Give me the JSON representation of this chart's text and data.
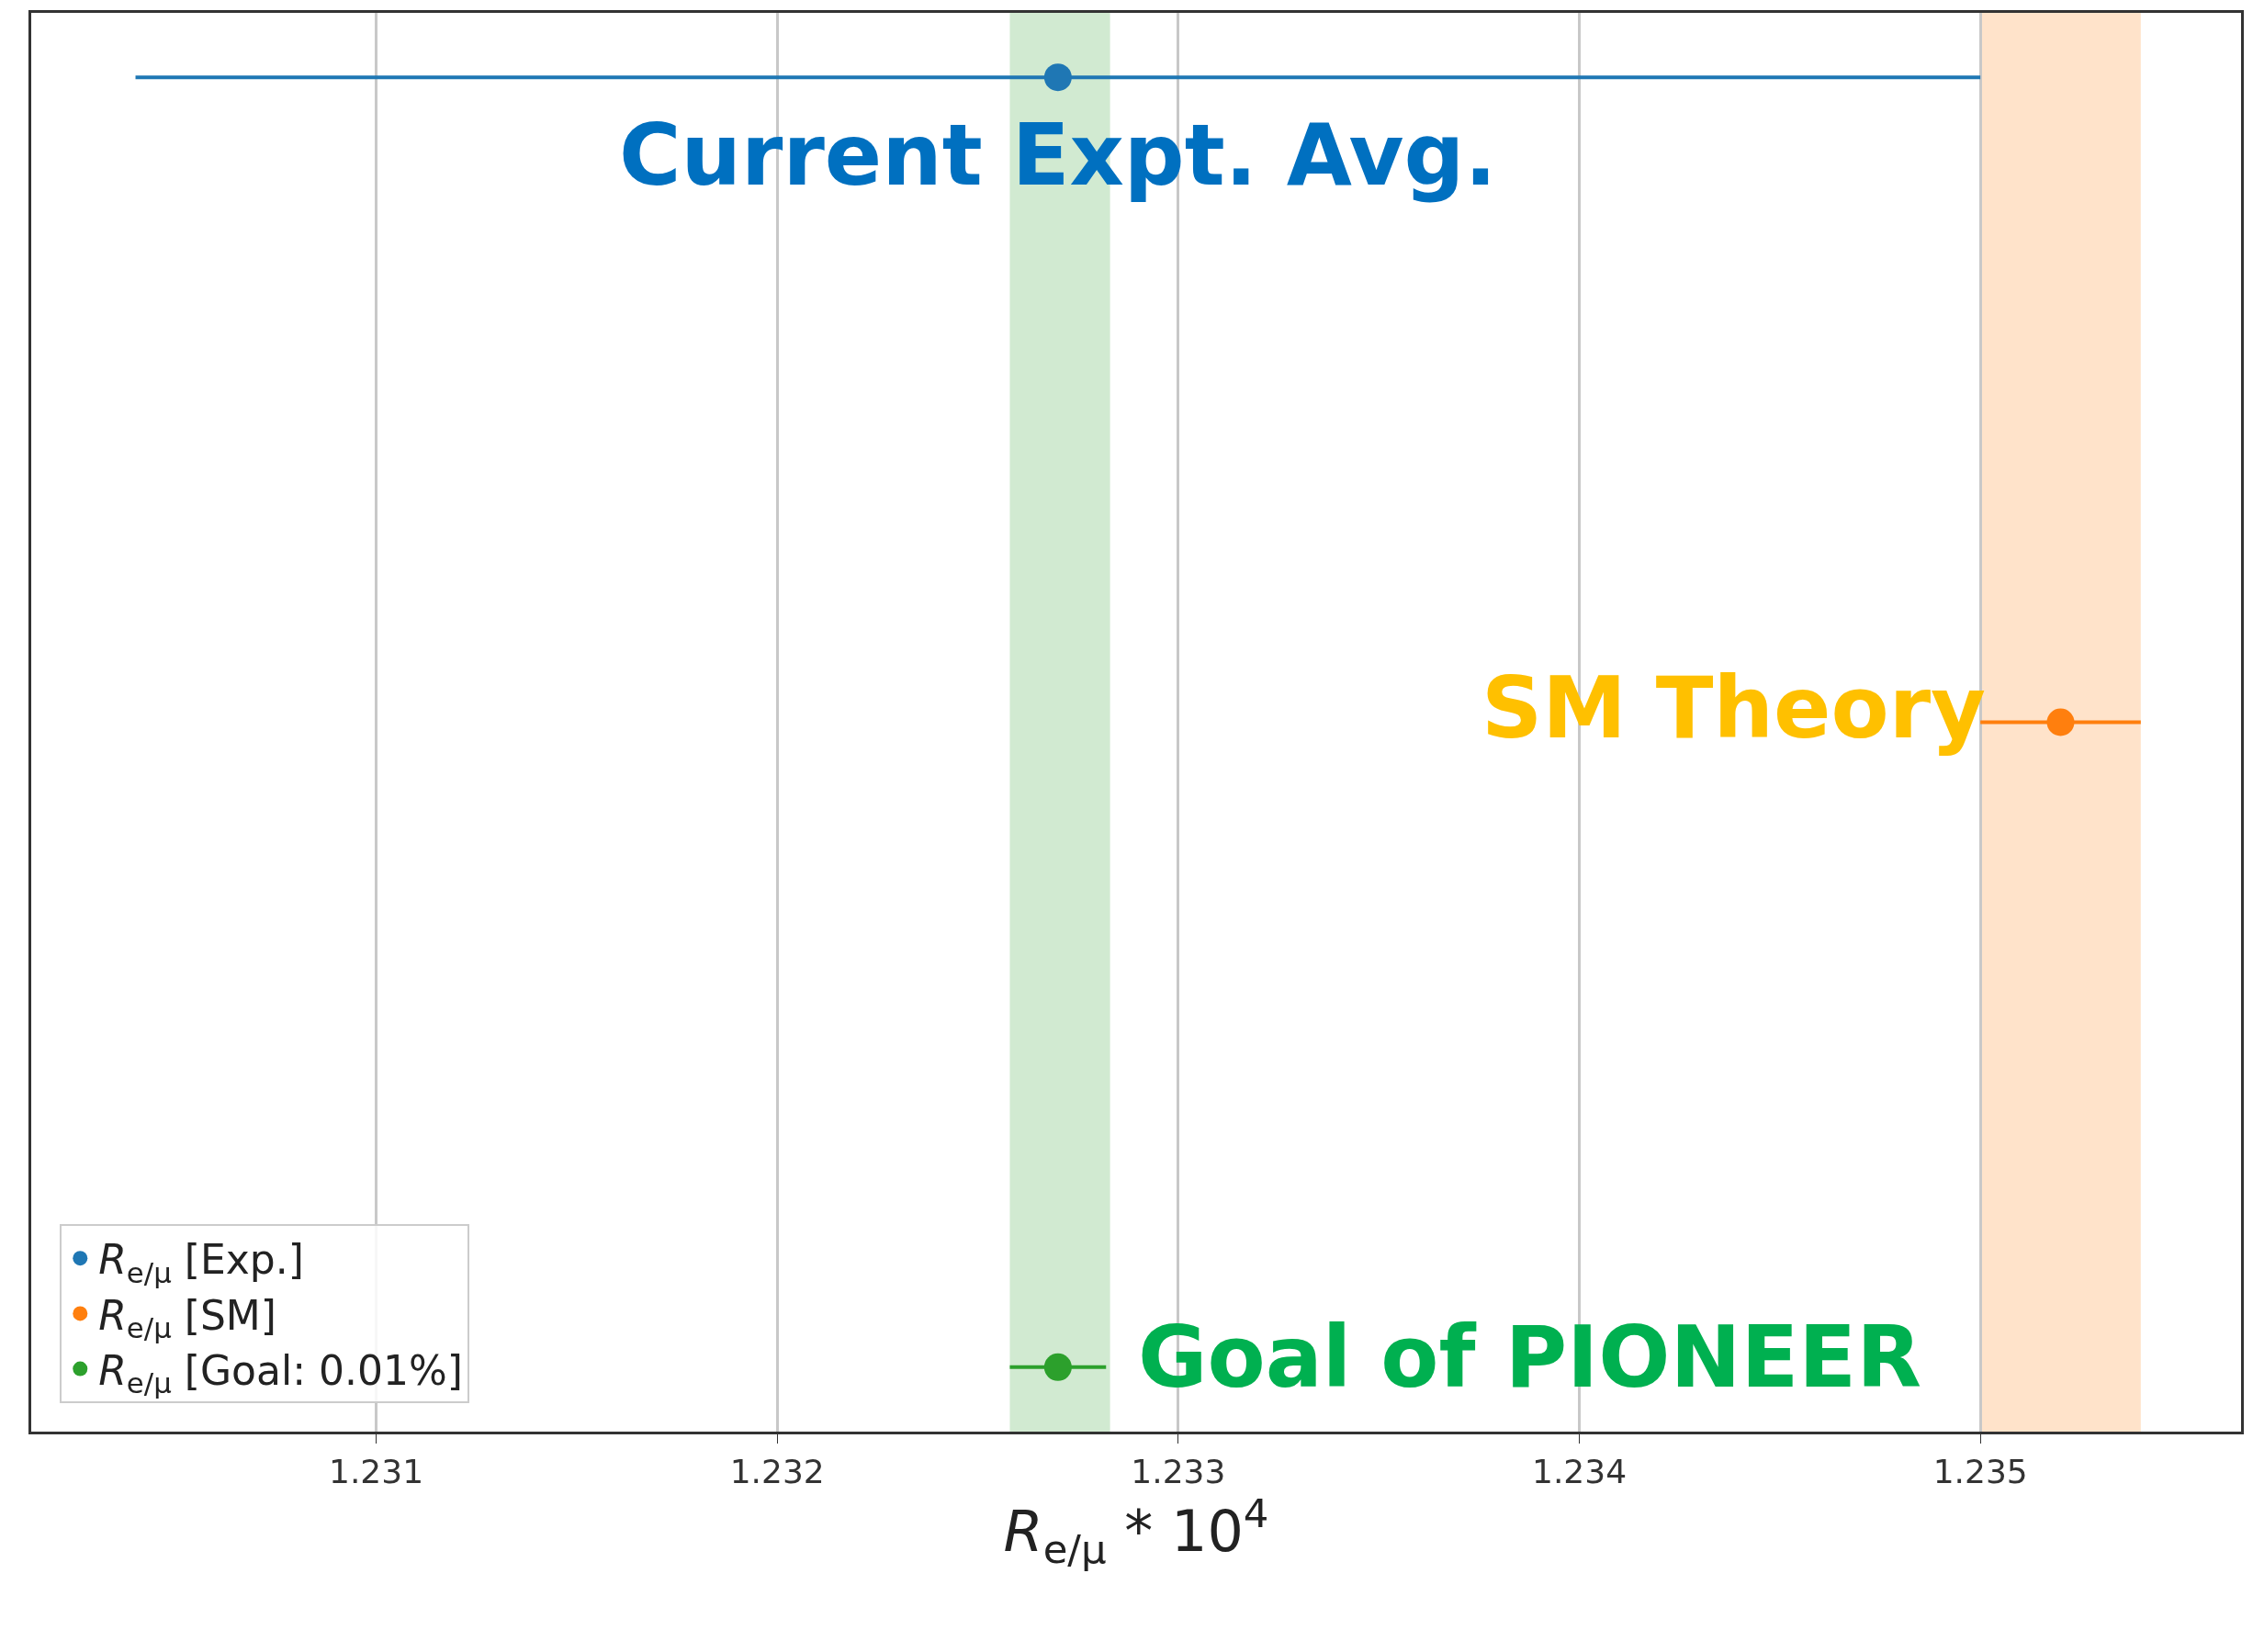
{
  "chart_data": {
    "type": "scatter",
    "orientation": "horizontal",
    "categories": [
      null,
      null,
      null
    ],
    "series": [
      {
        "name": "R$_{e/μ}$ [Exp.]",
        "color": "#1f77b4",
        "values": [
          1.2327,
          null,
          null
        ],
        "errors": [
          0.0023,
          null,
          null
        ]
      },
      {
        "name": "R$_{e/μ}$ [SM]",
        "color": "#ff7f0e",
        "values": [
          null,
          1.2352,
          null
        ],
        "errors": [
          null,
          0.0002,
          null
        ]
      },
      {
        "name": "R$_{e/μ}$ [Goal: 0.01%]",
        "color": "#2ca02c",
        "values": [
          null,
          null,
          1.2327
        ],
        "errors": [
          null,
          null,
          0.00012
        ]
      }
    ],
    "xlim": [
      1.23014,
      1.23565
    ],
    "xticks": [
      1.231,
      1.232,
      1.233,
      1.234,
      1.235
    ],
    "xlabel": "R$_{e/μ}$ * 10$^{4}$",
    "bands": [
      {
        "axis": "x",
        "from": 1.23258,
        "to": 1.23283,
        "color": "#2ca02c"
      },
      {
        "axis": "x",
        "from": 1.235,
        "to": 1.2354,
        "color": "#ff7f0e"
      }
    ],
    "annotations": [
      "Current Expt. Avg.",
      "SM Theory",
      "Goal of PIONEER"
    ],
    "grid": "x",
    "legend": "bottom left",
    "marker": "circle",
    "tick_labels": "x"
  }
}
